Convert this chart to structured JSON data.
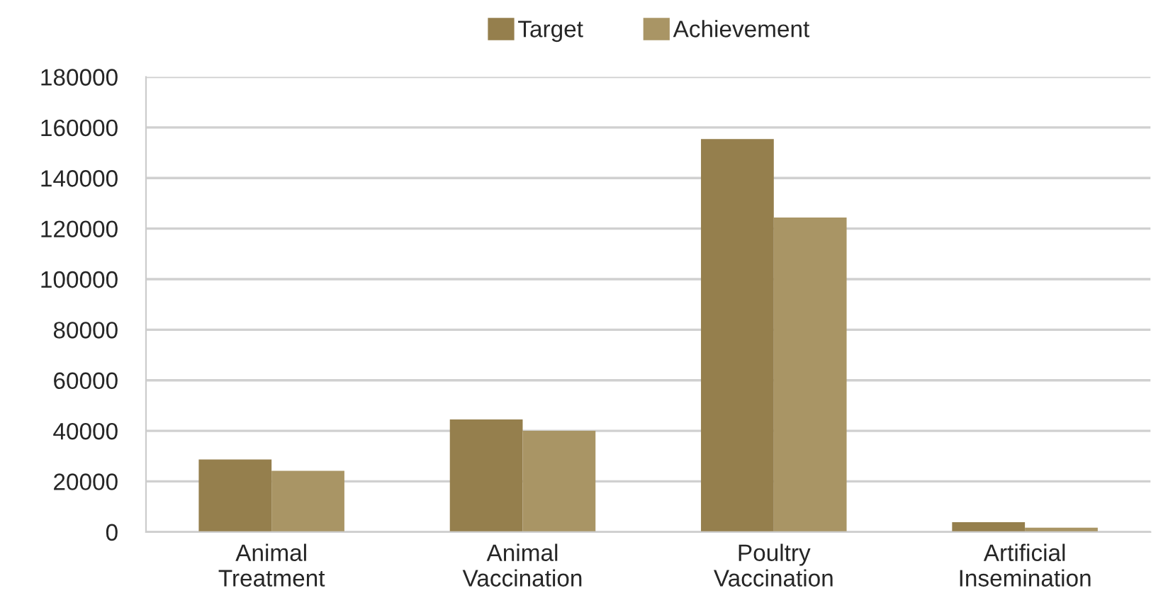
{
  "chart_data": {
    "type": "bar",
    "categories": [
      "Animal\nTreatment",
      "Animal\nVaccination",
      "Poultry\nVaccination",
      "Artificial\nInsemination"
    ],
    "series": [
      {
        "name": "Target",
        "color": "#957f4d",
        "values": [
          28700,
          44500,
          155400,
          3900
        ]
      },
      {
        "name": "Achievement",
        "color": "#a99565",
        "values": [
          24200,
          40000,
          124400,
          1700
        ]
      }
    ],
    "ylim": [
      0,
      180000
    ],
    "yticks": [
      0,
      20000,
      40000,
      60000,
      80000,
      100000,
      120000,
      140000,
      160000,
      180000
    ],
    "grid": "y",
    "legend": "top"
  }
}
